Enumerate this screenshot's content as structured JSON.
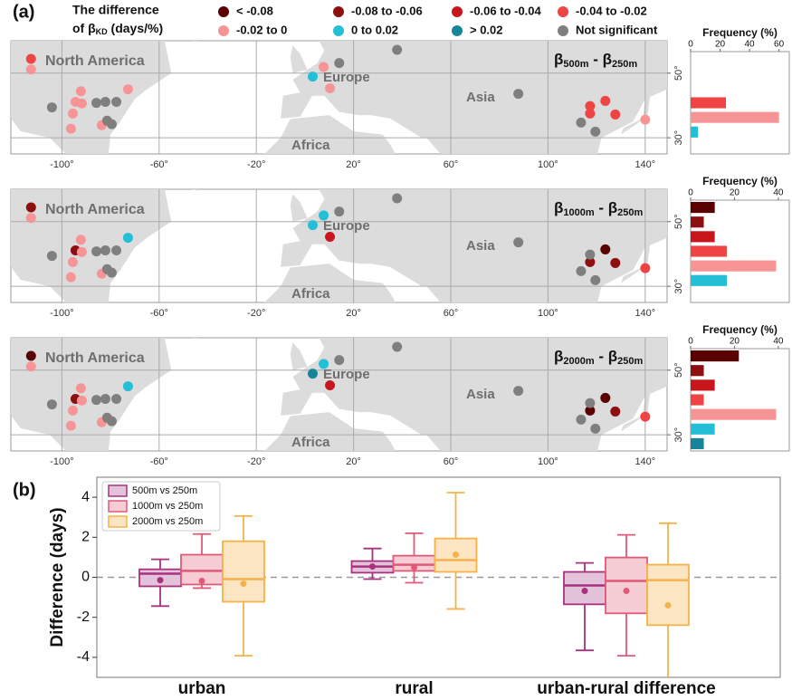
{
  "panel_labels": [
    "(a)",
    "(b)"
  ],
  "legend": {
    "title": [
      "The difference",
      "of β",
      "KD",
      " (days/%)"
    ],
    "entries": [
      {
        "name": "< -0.08",
        "color": "#5a0000"
      },
      {
        "name": "-0.08 to -0.06",
        "color": "#8e0f0f"
      },
      {
        "name": "-0.06 to -0.04",
        "color": "#c8161c"
      },
      {
        "name": "-0.04 to -0.02",
        "color": "#ee4444"
      },
      {
        "name": "-0.02 to 0",
        "color": "#f79596"
      },
      {
        "name": "0 to 0.02",
        "color": "#22bfd6"
      },
      {
        "name": "> 0.02",
        "color": "#178597"
      },
      {
        "name": "Not significant",
        "color": "#7f7f7f"
      }
    ]
  },
  "chart_data": [
    {
      "type": "map",
      "title": [
        "β",
        "500m",
        " - β",
        "250m"
      ],
      "annotations": [
        "North America",
        "Europe",
        "Asia",
        "Africa"
      ],
      "xlim": [
        -121,
        149
      ],
      "ylim": [
        25,
        60
      ],
      "grid": true,
      "xticks": [
        {
          "value": -100,
          "label": "-100°"
        },
        {
          "value": -60,
          "label": "-60°"
        },
        {
          "value": -20,
          "label": "-20°"
        },
        {
          "value": 20,
          "label": "20°"
        },
        {
          "value": 60,
          "label": "60°"
        },
        {
          "value": 100,
          "label": "100°"
        },
        {
          "value": 140,
          "label": "140°"
        }
      ],
      "yticks": [
        {
          "value": 30,
          "label": "30°"
        },
        {
          "value": 50,
          "label": "50°"
        }
      ],
      "series": [
        {
          "x": [],
          "values": []
        },
        {
          "x": [],
          "values": []
        },
        {
          "x": [],
          "values": []
        },
        {
          "x": [
            -112.7,
            117.3,
            117.3,
            123.6,
            127.7
          ],
          "values": [
            54.4,
            39.8,
            37.5,
            41.4,
            37.2
          ]
        },
        {
          "x": [
            -112.7,
            -92.2,
            -94.4,
            -91.8,
            -95.5,
            -96.3,
            -83.6,
            -72.8,
            7.7,
            10.3,
            140
          ],
          "values": [
            51.1,
            44.4,
            41.1,
            40.6,
            37.5,
            32.8,
            33.9,
            45,
            51.9,
            45.3,
            35.6
          ]
        },
        {
          "x": [
            3.2
          ],
          "values": [
            48.9
          ]
        },
        {
          "x": [],
          "values": []
        },
        {
          "x": [
            -104.1,
            -85.8,
            -82.1,
            -77.6,
            -81.4,
            -79.5,
            14.1,
            37.9,
            87.8,
            113.6,
            119.5
          ],
          "values": [
            39.4,
            40.8,
            41.1,
            41.1,
            35.3,
            34.2,
            53.1,
            57.2,
            43.6,
            34.7,
            31.9
          ]
        }
      ]
    },
    {
      "type": "hbar",
      "xlabel": "Frequency (%)",
      "xlim": [
        0,
        67
      ],
      "xticks": [
        0,
        20,
        40,
        60
      ],
      "values": [
        0,
        0,
        0,
        24,
        60,
        5,
        0
      ]
    },
    {
      "type": "map",
      "title": [
        "β",
        "1000m",
        " - β",
        "250m"
      ],
      "annotations": [
        "North America",
        "Europe",
        "Asia",
        "Africa"
      ],
      "xlim": [
        -121,
        149
      ],
      "ylim": [
        25,
        60
      ],
      "grid": true,
      "xticks": [
        {
          "value": -100,
          "label": "-100°"
        },
        {
          "value": -60,
          "label": "-60°"
        },
        {
          "value": -20,
          "label": "-20°"
        },
        {
          "value": 20,
          "label": "20°"
        },
        {
          "value": 60,
          "label": "60°"
        },
        {
          "value": 100,
          "label": "100°"
        },
        {
          "value": 140,
          "label": "140°"
        }
      ],
      "yticks": [
        {
          "value": 30,
          "label": "30°"
        },
        {
          "value": 50,
          "label": "50°"
        }
      ],
      "series": [
        {
          "x": [
            123.6
          ],
          "values": [
            41.4
          ]
        },
        {
          "x": [
            -112.7,
            -94.4,
            117.3,
            127.7
          ],
          "values": [
            54.4,
            41.1,
            37.5,
            37.2
          ]
        },
        {
          "x": [
            10.3
          ],
          "values": [
            45.3
          ]
        },
        {
          "x": [
            140
          ],
          "values": [
            35.6
          ]
        },
        {
          "x": [
            -112.7,
            -92.2,
            -91.8,
            -95.5,
            -96.3,
            -83.6
          ],
          "values": [
            51.1,
            44.4,
            40.6,
            37.5,
            32.8,
            33.9
          ]
        },
        {
          "x": [
            -72.8,
            7.7,
            3.2
          ],
          "values": [
            45,
            51.9,
            48.9
          ]
        },
        {
          "x": [],
          "values": []
        },
        {
          "x": [
            -104.1,
            -85.8,
            -82.1,
            -77.6,
            -81.4,
            -79.5,
            14.1,
            37.9,
            87.8,
            117.3,
            113.6,
            119.5
          ],
          "values": [
            39.4,
            40.8,
            41.1,
            41.1,
            35.3,
            34.2,
            53.1,
            57.2,
            43.6,
            39.8,
            34.7,
            31.9
          ]
        }
      ]
    },
    {
      "type": "hbar",
      "xlabel": "Frequency (%)",
      "xlim": [
        0,
        45
      ],
      "xticks": [
        0,
        20,
        40
      ],
      "values": [
        11,
        6,
        11,
        16.5,
        39,
        16.5,
        0
      ]
    },
    {
      "type": "map",
      "title": [
        "β",
        "2000m",
        " - β",
        "250m"
      ],
      "annotations": [
        "North America",
        "Europe",
        "Asia",
        "Africa"
      ],
      "xlim": [
        -121,
        149
      ],
      "ylim": [
        25,
        60
      ],
      "grid": true,
      "xticks": [
        {
          "value": -100,
          "label": "-100°"
        },
        {
          "value": -60,
          "label": "-60°"
        },
        {
          "value": -20,
          "label": "-20°"
        },
        {
          "value": 20,
          "label": "20°"
        },
        {
          "value": 60,
          "label": "60°"
        },
        {
          "value": 100,
          "label": "100°"
        },
        {
          "value": 140,
          "label": "140°"
        }
      ],
      "yticks": [
        {
          "value": 30,
          "label": "30°"
        },
        {
          "value": 50,
          "label": "50°"
        }
      ],
      "series": [
        {
          "x": [
            -112.7,
            117.3,
            123.6
          ],
          "values": [
            54.4,
            37.5,
            41.4
          ]
        },
        {
          "x": [
            -94.4,
            127.7
          ],
          "values": [
            41.1,
            37.2
          ]
        },
        {
          "x": [
            10.3
          ],
          "values": [
            45.3
          ]
        },
        {
          "x": [
            140
          ],
          "values": [
            35.6
          ]
        },
        {
          "x": [
            -112.7,
            -92.2,
            -91.8,
            -95.5,
            -96.3,
            -83.6
          ],
          "values": [
            51.1,
            44.4,
            40.6,
            37.5,
            32.8,
            33.9
          ]
        },
        {
          "x": [
            -72.8,
            7.7
          ],
          "values": [
            45,
            51.9
          ]
        },
        {
          "x": [
            3.2
          ],
          "values": [
            48.9
          ]
        },
        {
          "x": [
            -104.1,
            -85.8,
            -82.1,
            -77.6,
            -81.4,
            -79.5,
            14.1,
            37.9,
            87.8,
            117.3,
            113.6,
            119.5
          ],
          "values": [
            39.4,
            40.8,
            41.1,
            41.1,
            35.3,
            34.2,
            53.1,
            57.2,
            43.6,
            39.8,
            34.7,
            31.9
          ]
        }
      ]
    },
    {
      "type": "hbar",
      "xlabel": "Frequency (%)",
      "xlim": [
        0,
        45
      ],
      "xticks": [
        0,
        20,
        40
      ],
      "values": [
        22,
        6,
        11,
        6,
        39,
        11,
        6
      ]
    },
    {
      "type": "box",
      "categories": [
        "urban",
        "rural",
        "urban-rural difference"
      ],
      "ylabel": "Difference (days)",
      "ylim": [
        -5,
        5
      ],
      "yticks": [
        -4,
        -2,
        0,
        2,
        4
      ],
      "reference_line": 0,
      "legend": "upper left",
      "series": [
        {
          "name": "500m vs 250m",
          "color": "#a8327d",
          "fill": "#e3c3d9",
          "low": [
            -1.44,
            -0.09,
            -3.65
          ],
          "q1": [
            -0.45,
            0.23,
            -1.35
          ],
          "median": [
            0.18,
            0.54,
            -0.41
          ],
          "q3": [
            0.4,
            0.81,
            0.27
          ],
          "high": [
            0.9,
            1.44,
            0.72
          ],
          "mean": [
            -0.14,
            0.54,
            -0.68
          ]
        },
        {
          "name": "1000m vs 250m",
          "color": "#e05a78",
          "fill": "#f6cdd5",
          "low": [
            -0.54,
            -0.27,
            -3.92
          ],
          "q1": [
            -0.36,
            0.32,
            -1.8
          ],
          "median": [
            0.32,
            0.63,
            -0.18
          ],
          "q3": [
            1.13,
            1.08,
            0.99
          ],
          "high": [
            2.16,
            2.2,
            2.12
          ],
          "mean": [
            -0.18,
            0.5,
            -0.68
          ]
        },
        {
          "name": "2000m vs 250m",
          "color": "#f5b24a",
          "fill": "#fce5c2",
          "low": [
            -3.92,
            -1.58,
            -5.5
          ],
          "q1": [
            -1.22,
            0.27,
            -2.39
          ],
          "median": [
            -0.09,
            0.86,
            -0.14
          ],
          "q3": [
            1.8,
            1.94,
            0.63
          ],
          "high": [
            3.06,
            4.23,
            2.7
          ],
          "mean": [
            -0.32,
            1.13,
            -1.4
          ]
        }
      ]
    }
  ]
}
